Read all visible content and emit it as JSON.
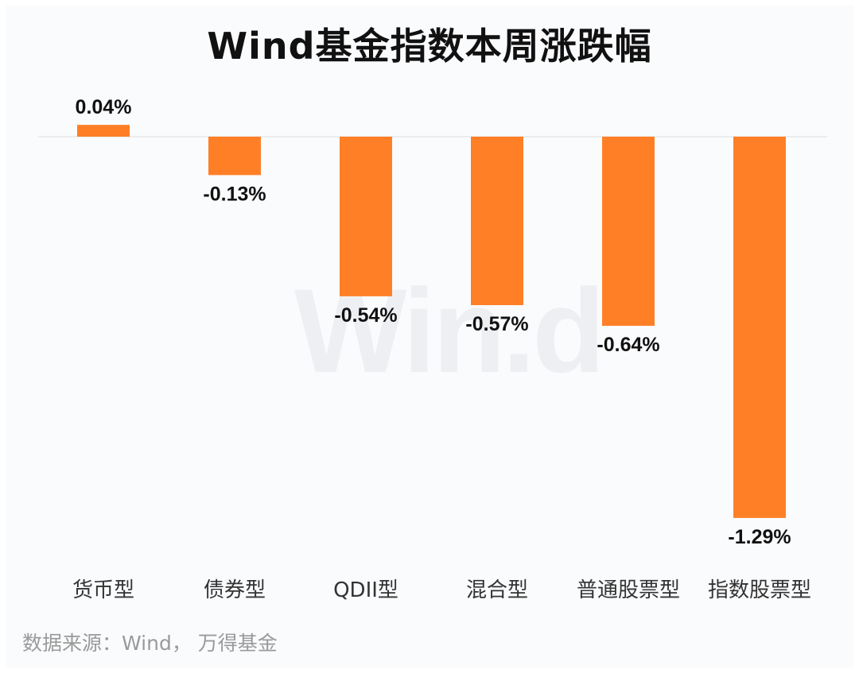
{
  "chart_data": {
    "type": "bar",
    "title": "Wind基金指数本周涨跌幅",
    "categories": [
      "货币型",
      "债券型",
      "QDII型",
      "混合型",
      "普通股票型",
      "指数股票型"
    ],
    "values": [
      0.04,
      -0.13,
      -0.54,
      -0.57,
      -0.64,
      -1.29
    ],
    "data_labels": [
      "0.04%",
      "-0.13%",
      "-0.54%",
      "-0.57%",
      "-0.64%",
      "-1.29%"
    ],
    "bar_color": "#ff7f27",
    "ylim": [
      -1.29,
      0.04
    ],
    "grid": false,
    "legend": "none"
  },
  "watermark": "Win.d",
  "source": "数据来源：Wind， 万得基金"
}
